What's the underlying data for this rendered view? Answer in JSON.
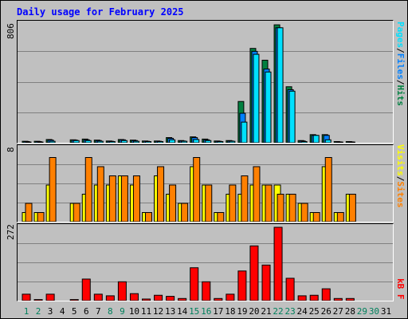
{
  "chart_title": "Daily usage for February 2025",
  "colors": {
    "pages": "#00e0ff",
    "files": "#0080ff",
    "hits": "#008040",
    "visits": "#ffff00",
    "sites": "#ff8000",
    "kbytes": "#ff0000",
    "weekend_day": "#00805c",
    "weekday": "#000000"
  },
  "axis_max": {
    "top": "806",
    "middle": "8",
    "bottom": "272"
  },
  "legend": {
    "pages": "Pages",
    "files": "Files",
    "hits": "Hits",
    "visits": "Visits",
    "sites": "Sites",
    "kbytes": "kB F",
    "sep": "/"
  },
  "chart_data": [
    {
      "type": "bar",
      "panel": "hits-files-pages",
      "categories": [
        "1",
        "2",
        "3",
        "4",
        "5",
        "6",
        "7",
        "8",
        "9",
        "10",
        "11",
        "12",
        "13",
        "14",
        "15",
        "16",
        "17",
        "18",
        "19",
        "20",
        "21",
        "22",
        "23",
        "24",
        "25",
        "26",
        "27",
        "28",
        "29",
        "30",
        "31"
      ],
      "ylim": [
        0,
        806
      ],
      "series": [
        {
          "name": "Hits",
          "values": [
            10,
            10,
            22,
            0,
            20,
            25,
            18,
            12,
            22,
            18,
            12,
            12,
            35,
            15,
            40,
            25,
            12,
            15,
            280,
            640,
            560,
            800,
            380,
            15,
            55,
            55,
            8,
            8,
            0,
            0,
            0
          ]
        },
        {
          "name": "Files",
          "values": [
            8,
            8,
            18,
            0,
            18,
            20,
            15,
            10,
            20,
            15,
            10,
            10,
            30,
            12,
            35,
            20,
            10,
            12,
            200,
            620,
            500,
            780,
            360,
            12,
            50,
            50,
            6,
            6,
            0,
            0,
            0
          ]
        },
        {
          "name": "Pages",
          "values": [
            5,
            5,
            10,
            0,
            15,
            15,
            10,
            8,
            15,
            10,
            8,
            8,
            20,
            10,
            22,
            15,
            8,
            10,
            140,
            600,
            480,
            780,
            350,
            8,
            50,
            20,
            5,
            5,
            0,
            0,
            0
          ]
        }
      ]
    },
    {
      "type": "bar",
      "panel": "visits-sites",
      "categories": [
        "1",
        "2",
        "3",
        "4",
        "5",
        "6",
        "7",
        "8",
        "9",
        "10",
        "11",
        "12",
        "13",
        "14",
        "15",
        "16",
        "17",
        "18",
        "19",
        "20",
        "21",
        "22",
        "23",
        "24",
        "25",
        "26",
        "27",
        "28",
        "29",
        "30",
        "31"
      ],
      "ylim": [
        0,
        8
      ],
      "series": [
        {
          "name": "Visits",
          "values": [
            1,
            1,
            4,
            0,
            2,
            3,
            4,
            4,
            5,
            4,
            1,
            5,
            3,
            2,
            6,
            4,
            1,
            3,
            3,
            4,
            4,
            4,
            3,
            2,
            1,
            6,
            1,
            3,
            0,
            0,
            0
          ]
        },
        {
          "name": "Sites",
          "values": [
            2,
            1,
            7,
            0,
            2,
            7,
            6,
            5,
            5,
            5,
            1,
            6,
            4,
            2,
            7,
            4,
            1,
            4,
            5,
            6,
            4,
            3,
            3,
            2,
            1,
            7,
            1,
            3,
            0,
            0,
            0
          ]
        }
      ]
    },
    {
      "type": "bar",
      "panel": "kbytes",
      "categories": [
        "1",
        "2",
        "3",
        "4",
        "5",
        "6",
        "7",
        "8",
        "9",
        "10",
        "11",
        "12",
        "13",
        "14",
        "15",
        "16",
        "17",
        "18",
        "19",
        "20",
        "21",
        "22",
        "23",
        "24",
        "25",
        "26",
        "27",
        "28",
        "29",
        "30",
        "31"
      ],
      "ylim": [
        0,
        272
      ],
      "series": [
        {
          "name": "kB F",
          "values": [
            24,
            4,
            24,
            0,
            4,
            80,
            24,
            18,
            70,
            26,
            6,
            20,
            16,
            8,
            122,
            70,
            8,
            24,
            110,
            203,
            132,
            272,
            83,
            18,
            20,
            44,
            8,
            8,
            0,
            0,
            0
          ]
        }
      ]
    }
  ],
  "day_labels": [
    "1",
    "2",
    "3",
    "4",
    "5",
    "6",
    "7",
    "8",
    "9",
    "10",
    "11",
    "12",
    "13",
    "14",
    "15",
    "16",
    "17",
    "18",
    "19",
    "20",
    "21",
    "22",
    "23",
    "24",
    "25",
    "26",
    "27",
    "28",
    "29",
    "30",
    "31"
  ],
  "weekend_days": [
    "1",
    "2",
    "8",
    "9",
    "15",
    "16",
    "22",
    "23",
    "29",
    "30"
  ]
}
